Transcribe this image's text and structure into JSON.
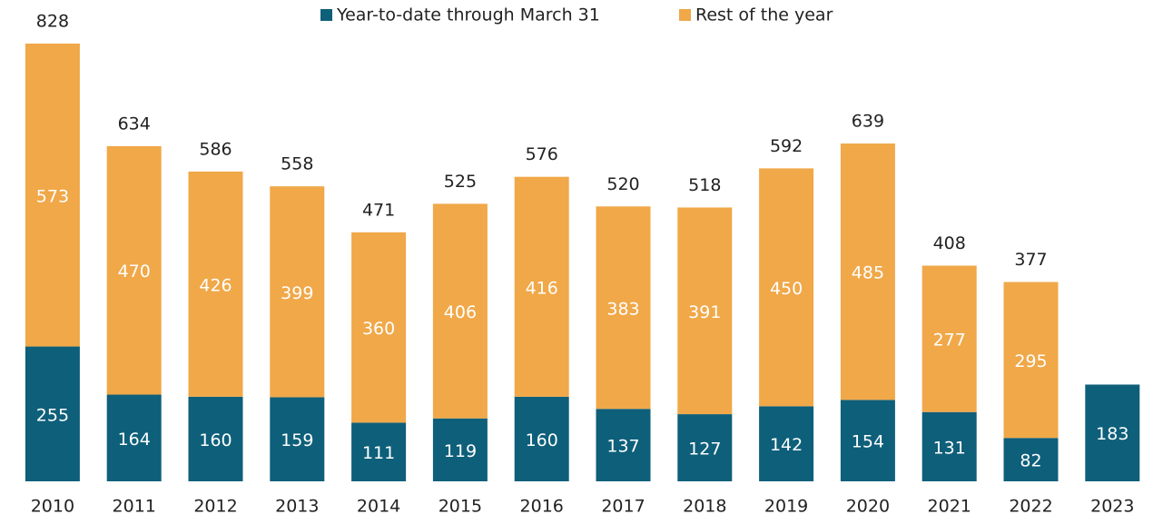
{
  "chart_data": {
    "type": "stacked_bar",
    "categories": [
      "2010",
      "2011",
      "2012",
      "2013",
      "2014",
      "2015",
      "2016",
      "2017",
      "2018",
      "2019",
      "2020",
      "2021",
      "2022",
      "2023"
    ],
    "series": [
      {
        "name": "Year-to-date through March 31",
        "color": "#0e5f7a",
        "values": [
          255,
          164,
          160,
          159,
          111,
          119,
          160,
          137,
          127,
          142,
          154,
          131,
          82,
          183
        ]
      },
      {
        "name": "Rest of the year",
        "color": "#f0a849",
        "values": [
          573,
          470,
          426,
          399,
          360,
          406,
          416,
          383,
          391,
          450,
          485,
          277,
          295,
          null
        ]
      }
    ],
    "totals": [
      828,
      634,
      586,
      558,
      471,
      525,
      576,
      520,
      518,
      592,
      639,
      408,
      377,
      null
    ],
    "legend": "top"
  }
}
